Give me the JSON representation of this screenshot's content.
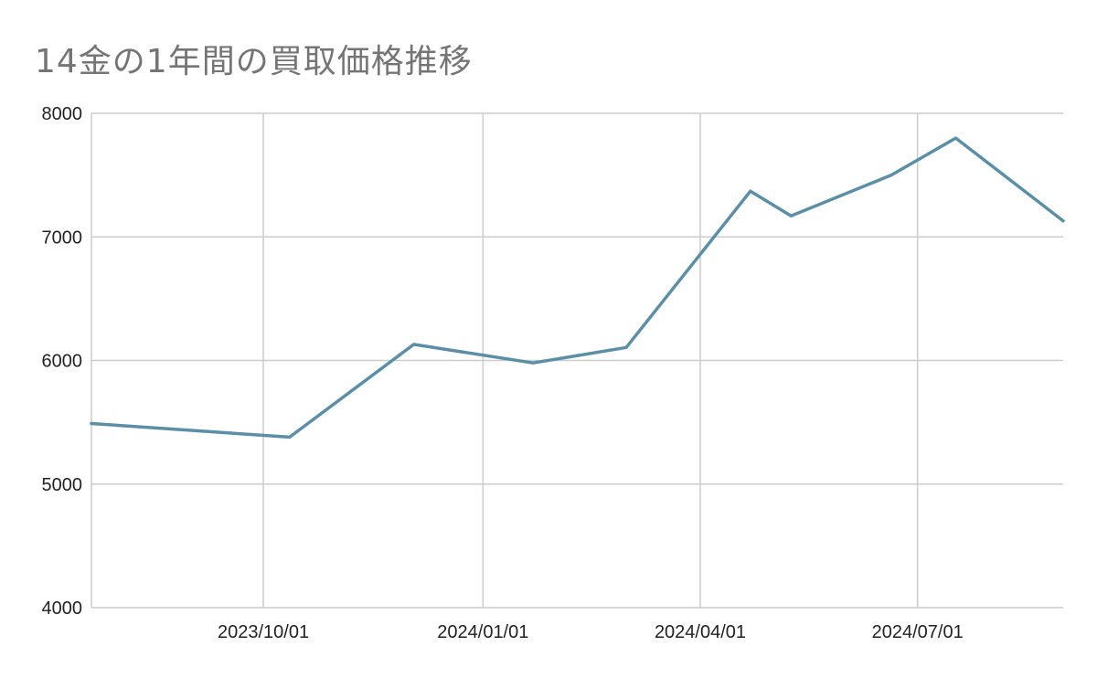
{
  "chart_data": {
    "type": "line",
    "title": "14金の1年間の買取価格推移",
    "xlabel": "",
    "ylabel": "",
    "ylim": [
      4000,
      8000
    ],
    "yticks": [
      4000,
      5000,
      6000,
      7000,
      8000
    ],
    "xlim": [
      "2023-07-21",
      "2024-08-31"
    ],
    "xticks": [
      {
        "date": "2023-10-01",
        "label": "2023/10/01"
      },
      {
        "date": "2024-01-01",
        "label": "2024/01/01"
      },
      {
        "date": "2024-04-01",
        "label": "2024/04/01"
      },
      {
        "date": "2024-07-01",
        "label": "2024/07/01"
      }
    ],
    "grid": true,
    "legend": "none",
    "line_color": "#5b8fa8",
    "series": [
      {
        "x": [
          "2023-07-21",
          "2023-10-12",
          "2023-12-03",
          "2024-01-22",
          "2024-03-01",
          "2024-04-22",
          "2024-05-09",
          "2024-06-20",
          "2024-07-17",
          "2024-08-31"
        ],
        "values": [
          5490,
          5380,
          6130,
          5980,
          6105,
          7370,
          7170,
          7500,
          7800,
          7130
        ]
      }
    ]
  }
}
